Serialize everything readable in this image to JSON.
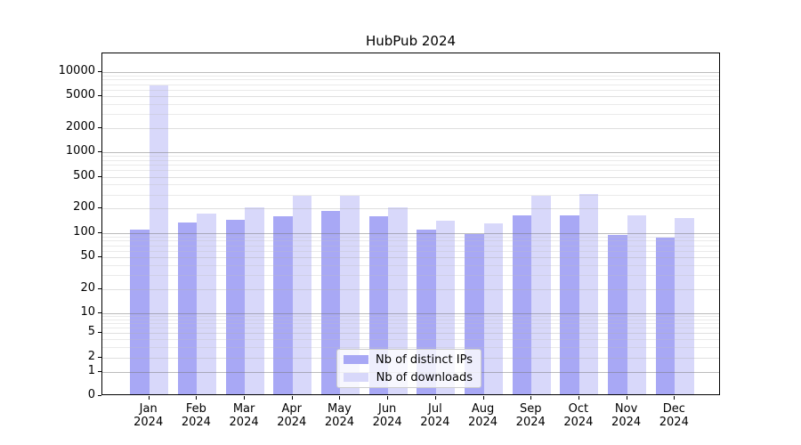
{
  "title": "HubPub 2024",
  "chart_data": {
    "type": "bar",
    "title": "HubPub 2024",
    "yscale": "symlog",
    "grid": "horizontal",
    "legend_position": "lower center",
    "categories": [
      "Jan",
      "Feb",
      "Mar",
      "Apr",
      "May",
      "Jun",
      "Jul",
      "Aug",
      "Sep",
      "Oct",
      "Nov",
      "Dec"
    ],
    "category_year": "2024",
    "series": [
      {
        "name": "Nb of distinct IPs",
        "color": "#a8a8f5",
        "values": [
          104,
          127,
          137,
          153,
          178,
          153,
          104,
          92,
          156,
          158,
          90,
          82
        ]
      },
      {
        "name": "Nb of downloads",
        "color": "#d8d8fa",
        "values": [
          6500,
          166,
          195,
          275,
          275,
          200,
          135,
          124,
          275,
          293,
          158,
          145
        ]
      }
    ],
    "yticks": [
      0,
      1,
      2,
      5,
      10,
      20,
      50,
      100,
      200,
      500,
      1000,
      2000,
      5000,
      10000
    ],
    "ylim": [
      0,
      16000
    ],
    "xlabel": "",
    "ylabel": ""
  }
}
